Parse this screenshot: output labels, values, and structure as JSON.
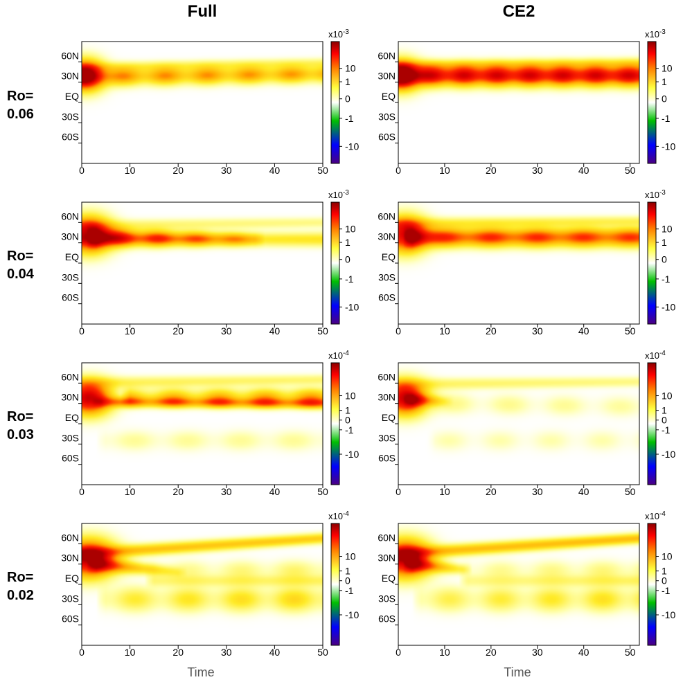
{
  "figure": {
    "columns": [
      "Full",
      "CE2"
    ],
    "rows": [
      {
        "label_line1": "Ro=",
        "label_line2": "0.06"
      },
      {
        "label_line1": "Ro=",
        "label_line2": "0.04"
      },
      {
        "label_line1": "Ro=",
        "label_line2": "0.03"
      },
      {
        "label_line1": "Ro=",
        "label_line2": "0.02"
      }
    ],
    "xlabel": "Time"
  },
  "colors": {
    "colormap": [
      "#4b0082",
      "#0000ff",
      "#00c000",
      "#ffffff",
      "#ffff40",
      "#ff8000",
      "#ff0000",
      "#8b0000"
    ]
  },
  "chart_data": [
    {
      "type": "heatmap",
      "row": 0,
      "col": 0,
      "column_title": "Full",
      "row_label": "Ro= 0.06",
      "xlabel": "",
      "xlim": [
        0,
        50
      ],
      "xticks": [
        0,
        10,
        20,
        30,
        40,
        50
      ],
      "ylabel": "",
      "ylim": [
        -90,
        90
      ],
      "yticks": [
        "60N",
        "30N",
        "EQ",
        "30S",
        "60S"
      ],
      "colorbar": {
        "scale": "x10-3",
        "scale_base": "x10",
        "scale_exp": "-3",
        "ticks": [
          "10",
          "1",
          "0",
          "-1",
          "-10"
        ],
        "range": [
          -10,
          10
        ]
      },
      "features": [
        {
          "kind": "band",
          "t0": 0,
          "t1": 50,
          "lat0": 38,
          "lat1": 42,
          "w0": 9,
          "w1": 8,
          "a0": 0.5,
          "a1": 0.45,
          "period": 8.7,
          "mod": 0.4
        },
        {
          "kind": "blob",
          "t": 0.8,
          "lat": 40,
          "st": 2.5,
          "sl": 15,
          "a": 0.85
        },
        {
          "kind": "band",
          "t0": 0,
          "t1": 50,
          "lat0": 52,
          "lat1": 58,
          "w0": 5,
          "w1": 5,
          "a0": 0.12,
          "a1": 0.12,
          "period": 0,
          "mod": 0
        }
      ]
    },
    {
      "type": "heatmap",
      "row": 0,
      "col": 1,
      "column_title": "CE2",
      "row_label": "Ro= 0.06",
      "xlabel": "",
      "xlim": [
        0,
        52
      ],
      "xticks": [
        0,
        10,
        20,
        30,
        40,
        50
      ],
      "ylabel": "",
      "ylim": [
        -90,
        90
      ],
      "yticks": [
        "60N",
        "30N",
        "EQ",
        "30S",
        "60S"
      ],
      "colorbar": {
        "scale": "x10-3",
        "scale_base": "x10",
        "scale_exp": "-3",
        "ticks": [
          "10",
          "1",
          "0",
          "-1",
          "-10"
        ],
        "range": [
          -10,
          10
        ]
      },
      "features": [
        {
          "kind": "band",
          "t0": 0,
          "t1": 52,
          "lat0": 40,
          "lat1": 40,
          "w0": 10,
          "w1": 10,
          "a0": 0.9,
          "a1": 0.9,
          "period": 7.1,
          "mod": 0.22
        },
        {
          "kind": "blob",
          "t": 0.8,
          "lat": 40,
          "st": 2.5,
          "sl": 15,
          "a": 0.7
        },
        {
          "kind": "band",
          "t0": 0,
          "t1": 52,
          "lat0": 55,
          "lat1": 58,
          "w0": 5,
          "w1": 5,
          "a0": 0.15,
          "a1": 0.15,
          "period": 0,
          "mod": 0
        }
      ]
    },
    {
      "type": "heatmap",
      "row": 1,
      "col": 0,
      "column_title": "Full",
      "row_label": "Ro= 0.04",
      "xlabel": "",
      "xlim": [
        0,
        50
      ],
      "xticks": [
        0,
        10,
        20,
        30,
        40,
        50
      ],
      "ylabel": "",
      "ylim": [
        -90,
        90
      ],
      "yticks": [
        "60N",
        "30N",
        "EQ",
        "30S",
        "60S"
      ],
      "colorbar": {
        "scale": "x10-3",
        "scale_base": "x10",
        "scale_exp": "-3",
        "ticks": [
          "10",
          "1",
          "0",
          "-1",
          "-10"
        ],
        "range": [
          -10,
          10
        ]
      },
      "features": [
        {
          "kind": "blob",
          "t": 1.5,
          "lat": 42,
          "st": 3,
          "sl": 17,
          "a": 0.92
        },
        {
          "kind": "band",
          "t0": 3,
          "t1": 36,
          "lat0": 38,
          "lat1": 35,
          "w0": 9,
          "w1": 6,
          "a0": 0.75,
          "a1": 0.25,
          "period": 8,
          "mod": 0.35
        },
        {
          "kind": "band",
          "t0": 0,
          "t1": 50,
          "lat0": 35,
          "lat1": 35,
          "w0": 6,
          "w1": 7,
          "a0": 0.15,
          "a1": 0.22,
          "period": 0,
          "mod": 0
        },
        {
          "kind": "band",
          "t0": 0,
          "t1": 50,
          "lat0": 55,
          "lat1": 60,
          "w0": 6,
          "w1": 5,
          "a0": 0.12,
          "a1": 0.1,
          "period": 0,
          "mod": 0
        }
      ]
    },
    {
      "type": "heatmap",
      "row": 1,
      "col": 1,
      "column_title": "CE2",
      "row_label": "Ro= 0.04",
      "xlabel": "",
      "xlim": [
        0,
        52
      ],
      "xticks": [
        0,
        10,
        20,
        30,
        40,
        50
      ],
      "ylabel": "",
      "ylim": [
        -90,
        90
      ],
      "yticks": [
        "60N",
        "30N",
        "EQ",
        "30S",
        "60S"
      ],
      "colorbar": {
        "scale": "x10-3",
        "scale_base": "x10",
        "scale_exp": "-3",
        "ticks": [
          "10",
          "1",
          "0",
          "-1",
          "-10"
        ],
        "range": [
          -10,
          10
        ]
      },
      "features": [
        {
          "kind": "blob",
          "t": 1.5,
          "lat": 42,
          "st": 3,
          "sl": 17,
          "a": 0.85
        },
        {
          "kind": "band",
          "t0": 3,
          "t1": 52,
          "lat0": 38,
          "lat1": 38,
          "w0": 9,
          "w1": 9,
          "a0": 0.7,
          "a1": 0.65,
          "period": 10,
          "mod": 0.25
        },
        {
          "kind": "band",
          "t0": 0,
          "t1": 52,
          "lat0": 58,
          "lat1": 62,
          "w0": 6,
          "w1": 5,
          "a0": 0.18,
          "a1": 0.14,
          "period": 0,
          "mod": 0
        }
      ]
    },
    {
      "type": "heatmap",
      "row": 2,
      "col": 0,
      "column_title": "Full",
      "row_label": "Ro= 0.03",
      "xlabel": "",
      "xlim": [
        0,
        50
      ],
      "xticks": [
        0,
        10,
        20,
        30,
        40,
        50
      ],
      "ylabel": "",
      "ylim": [
        -90,
        90
      ],
      "yticks": [
        "60N",
        "30N",
        "EQ",
        "30S",
        "60S"
      ],
      "colorbar": {
        "scale": "x10-4",
        "scale_base": "x10",
        "scale_exp": "-4",
        "ticks": [
          "10",
          "1",
          "0",
          "-1",
          "-10"
        ],
        "range": [
          -20,
          20
        ]
      },
      "features": [
        {
          "kind": "blob",
          "t": 1.5,
          "lat": 38,
          "st": 3,
          "sl": 16,
          "a": 0.92
        },
        {
          "kind": "band",
          "t0": 4,
          "t1": 50,
          "lat0": 32,
          "lat1": 30,
          "w0": 5,
          "w1": 5,
          "a0": 0.45,
          "a1": 0.55,
          "period": 9.5,
          "mod": 0.3
        },
        {
          "kind": "band",
          "t0": 10,
          "t1": 50,
          "lat0": 40,
          "lat1": 40,
          "w0": 8,
          "w1": 8,
          "a0": 0.3,
          "a1": 0.4,
          "period": 9.5,
          "mod": 0.5
        },
        {
          "kind": "band",
          "t0": 0,
          "t1": 50,
          "lat0": 60,
          "lat1": 65,
          "w0": 6,
          "w1": 5,
          "a0": 0.15,
          "a1": 0.12,
          "period": 0,
          "mod": 0
        },
        {
          "kind": "band",
          "t0": 5,
          "t1": 50,
          "lat0": -25,
          "lat1": -25,
          "w0": 10,
          "w1": 10,
          "a0": 0.08,
          "a1": 0.08,
          "period": 11,
          "mod": 0.6
        }
      ]
    },
    {
      "type": "heatmap",
      "row": 2,
      "col": 1,
      "column_title": "CE2",
      "row_label": "Ro= 0.03",
      "xlabel": "",
      "xlim": [
        0,
        52
      ],
      "xticks": [
        0,
        10,
        20,
        30,
        40,
        50
      ],
      "ylabel": "",
      "ylim": [
        -90,
        90
      ],
      "yticks": [
        "60N",
        "30N",
        "EQ",
        "30S",
        "60S"
      ],
      "colorbar": {
        "scale": "x10-4",
        "scale_base": "x10",
        "scale_exp": "-4",
        "ticks": [
          "10",
          "1",
          "0",
          "-1",
          "-10"
        ],
        "range": [
          -20,
          20
        ]
      },
      "features": [
        {
          "kind": "blob",
          "t": 1.5,
          "lat": 38,
          "st": 3,
          "sl": 16,
          "a": 0.92
        },
        {
          "kind": "band",
          "t0": 3,
          "t1": 10,
          "lat0": 35,
          "lat1": 33,
          "w0": 6,
          "w1": 5,
          "a0": 0.45,
          "a1": 0.1,
          "period": 0,
          "mod": 0
        },
        {
          "kind": "band",
          "t0": 0,
          "t1": 52,
          "lat0": 58,
          "lat1": 62,
          "w0": 6,
          "w1": 5,
          "a0": 0.14,
          "a1": 0.1,
          "period": 0,
          "mod": 0
        },
        {
          "kind": "band",
          "t0": 8,
          "t1": 52,
          "lat0": 30,
          "lat1": 25,
          "w0": 10,
          "w1": 10,
          "a0": 0.1,
          "a1": 0.07,
          "period": 12,
          "mod": 0.7
        },
        {
          "kind": "band",
          "t0": 8,
          "t1": 52,
          "lat0": -25,
          "lat1": -25,
          "w0": 10,
          "w1": 10,
          "a0": 0.06,
          "a1": 0.06,
          "period": 11,
          "mod": 0.7
        }
      ]
    },
    {
      "type": "heatmap",
      "row": 3,
      "col": 0,
      "column_title": "Full",
      "row_label": "Ro= 0.02",
      "xlabel": "Time",
      "xlim": [
        0,
        50
      ],
      "xticks": [
        0,
        10,
        20,
        30,
        40,
        50
      ],
      "ylabel": "",
      "ylim": [
        -90,
        90
      ],
      "yticks": [
        "60N",
        "30N",
        "EQ",
        "30S",
        "60S"
      ],
      "colorbar": {
        "scale": "x10-4",
        "scale_base": "x10",
        "scale_exp": "-4",
        "ticks": [
          "10",
          "1",
          "0",
          "-1",
          "-10"
        ],
        "range": [
          -20,
          20
        ]
      },
      "features": [
        {
          "kind": "blob",
          "t": 1.5,
          "lat": 38,
          "st": 3.5,
          "sl": 18,
          "a": 0.95
        },
        {
          "kind": "band",
          "t0": 3,
          "t1": 20,
          "lat0": 30,
          "lat1": 18,
          "w0": 7,
          "w1": 5,
          "a0": 0.5,
          "a1": 0.1,
          "period": 0,
          "mod": 0
        },
        {
          "kind": "band",
          "t0": 0,
          "t1": 50,
          "lat0": 45,
          "lat1": 68,
          "w0": 6,
          "w1": 5,
          "a0": 0.35,
          "a1": 0.3,
          "period": 0,
          "mod": 0
        },
        {
          "kind": "band",
          "t0": 15,
          "t1": 50,
          "lat0": 5,
          "lat1": 5,
          "w0": 6,
          "w1": 6,
          "a0": 0.1,
          "a1": 0.12,
          "period": 0,
          "mod": 0
        },
        {
          "kind": "band",
          "t0": 5,
          "t1": 50,
          "lat0": -22,
          "lat1": -22,
          "w0": 12,
          "w1": 12,
          "a0": 0.18,
          "a1": 0.28,
          "period": 11,
          "mod": 0.6
        },
        {
          "kind": "band",
          "t0": 15,
          "t1": 50,
          "lat0": 20,
          "lat1": 20,
          "w0": 10,
          "w1": 10,
          "a0": 0.08,
          "a1": 0.14,
          "period": 11,
          "mod": 0.6
        }
      ]
    },
    {
      "type": "heatmap",
      "row": 3,
      "col": 1,
      "column_title": "CE2",
      "row_label": "Ro= 0.02",
      "xlabel": "Time",
      "xlim": [
        0,
        52
      ],
      "xticks": [
        0,
        10,
        20,
        30,
        40,
        50
      ],
      "ylabel": "",
      "ylim": [
        -90,
        90
      ],
      "yticks": [
        "60N",
        "30N",
        "EQ",
        "30S",
        "60S"
      ],
      "colorbar": {
        "scale": "x10-4",
        "scale_base": "x10",
        "scale_exp": "-4",
        "ticks": [
          "10",
          "1",
          "0",
          "-1",
          "-10"
        ],
        "range": [
          -20,
          20
        ]
      },
      "features": [
        {
          "kind": "blob",
          "t": 1.5,
          "lat": 38,
          "st": 3.5,
          "sl": 18,
          "a": 0.95
        },
        {
          "kind": "band",
          "t0": 3,
          "t1": 14,
          "lat0": 30,
          "lat1": 22,
          "w0": 7,
          "w1": 5,
          "a0": 0.5,
          "a1": 0.15,
          "period": 0,
          "mod": 0
        },
        {
          "kind": "band",
          "t0": 0,
          "t1": 52,
          "lat0": 45,
          "lat1": 68,
          "w0": 6,
          "w1": 5,
          "a0": 0.35,
          "a1": 0.35,
          "period": 0,
          "mod": 0
        },
        {
          "kind": "band",
          "t0": 15,
          "t1": 52,
          "lat0": 5,
          "lat1": 5,
          "w0": 6,
          "w1": 6,
          "a0": 0.08,
          "a1": 0.12,
          "period": 0,
          "mod": 0
        },
        {
          "kind": "band",
          "t0": 5,
          "t1": 52,
          "lat0": -22,
          "lat1": -22,
          "w0": 12,
          "w1": 12,
          "a0": 0.15,
          "a1": 0.25,
          "period": 11,
          "mod": 0.6
        },
        {
          "kind": "band",
          "t0": 15,
          "t1": 52,
          "lat0": 20,
          "lat1": 20,
          "w0": 10,
          "w1": 10,
          "a0": 0.08,
          "a1": 0.12,
          "period": 11,
          "mod": 0.6
        }
      ]
    }
  ]
}
